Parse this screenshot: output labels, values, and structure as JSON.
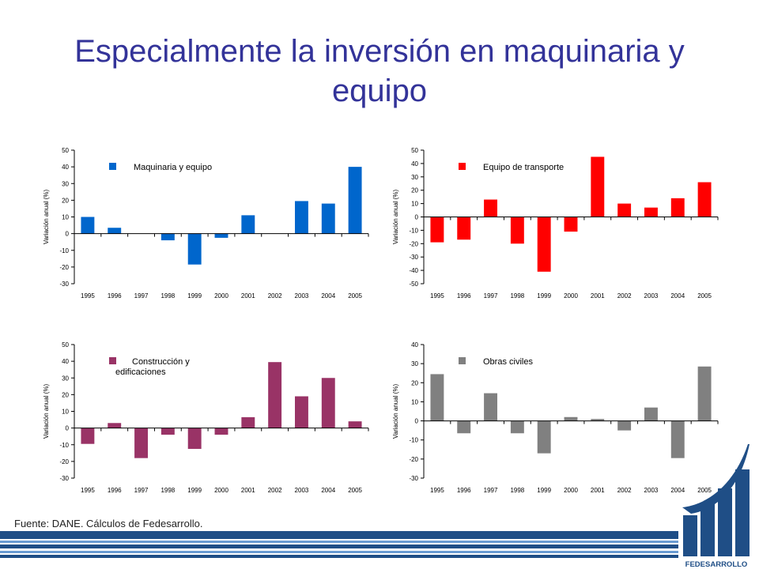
{
  "slide": {
    "title": "Especialmente la inversión en maquinaria y equipo",
    "source_note": "Fuente: DANE. Cálculos de Fedesarrollo.",
    "logo_text": "FEDESARROLLO"
  },
  "colors": {
    "title": "#333399",
    "band_dark": "#1F4E86",
    "band_light": "#6A9BD2",
    "logo": "#1F4E86"
  },
  "chart_data": [
    {
      "type": "bar",
      "legend": "Maquinaria y equipo",
      "legend_placement": "top-left",
      "ylabel": "Variación anual (%)",
      "categories": [
        "1995",
        "1996",
        "1997",
        "1998",
        "1999",
        "2000",
        "2001",
        "2002",
        "2003",
        "2004",
        "2005"
      ],
      "values": [
        10,
        3.5,
        0,
        -4,
        -18.5,
        -2.5,
        11,
        0,
        19.5,
        18,
        40
      ],
      "ylim": [
        -30,
        50
      ],
      "yticks": [
        -30,
        -20,
        -10,
        0,
        10,
        20,
        30,
        40,
        50
      ],
      "color": "#0066CC",
      "grid": false
    },
    {
      "type": "bar",
      "legend": "Equipo de transporte",
      "legend_placement": "top-left",
      "ylabel": "Variación anual (%)",
      "categories": [
        "1995",
        "1996",
        "1997",
        "1998",
        "1999",
        "2000",
        "2001",
        "2002",
        "2003",
        "2004",
        "2005"
      ],
      "values": [
        -19,
        -17,
        13,
        -20,
        -41,
        -11,
        45,
        10,
        7,
        14,
        26
      ],
      "ylim": [
        -50,
        50
      ],
      "yticks": [
        -50,
        -40,
        -30,
        -20,
        -10,
        0,
        10,
        20,
        30,
        40,
        50
      ],
      "color": "#FF0000",
      "grid": false
    },
    {
      "type": "bar",
      "legend": "Construcción y edificaciones",
      "legend_placement": "top-left",
      "ylabel": "Variación anual (%)",
      "categories": [
        "1995",
        "1996",
        "1997",
        "1998",
        "1999",
        "2000",
        "2001",
        "2002",
        "2003",
        "2004",
        "2005"
      ],
      "values": [
        -9.5,
        3,
        -18,
        -4,
        -12.5,
        -4,
        6.5,
        39.5,
        19,
        30,
        4
      ],
      "ylim": [
        -30,
        50
      ],
      "yticks": [
        -30,
        -20,
        -10,
        0,
        10,
        20,
        30,
        40,
        50
      ],
      "color": "#993366",
      "grid": false
    },
    {
      "type": "bar",
      "legend": "Obras civiles",
      "legend_placement": "top-left",
      "ylabel": "Variación anual (%)",
      "categories": [
        "1995",
        "1996",
        "1997",
        "1998",
        "1999",
        "2000",
        "2001",
        "2002",
        "2003",
        "2004",
        "2005"
      ],
      "values": [
        24.5,
        -6.5,
        14.5,
        -6.5,
        -17,
        2,
        1,
        -5,
        7,
        -19.5,
        28.5
      ],
      "ylim": [
        -30,
        40
      ],
      "yticks": [
        -30,
        -20,
        -10,
        0,
        10,
        20,
        30,
        40
      ],
      "color": "#808080",
      "grid": false
    }
  ]
}
